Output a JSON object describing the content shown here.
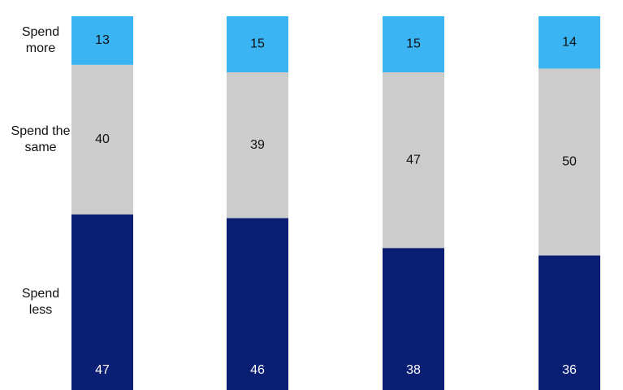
{
  "chart_data": {
    "type": "stacked-bar",
    "categories": [
      null,
      null,
      null,
      null
    ],
    "series": [
      {
        "name": "Spend less",
        "color": "#0a1e73",
        "values": [
          47,
          46,
          38,
          36
        ]
      },
      {
        "name": "Spend the same",
        "color": "#cccccc",
        "values": [
          40,
          39,
          47,
          50
        ]
      },
      {
        "name": "Spend more",
        "color": "#3ab4f2",
        "values": [
          13,
          15,
          15,
          14
        ]
      }
    ],
    "ylim": [
      0,
      100
    ]
  }
}
